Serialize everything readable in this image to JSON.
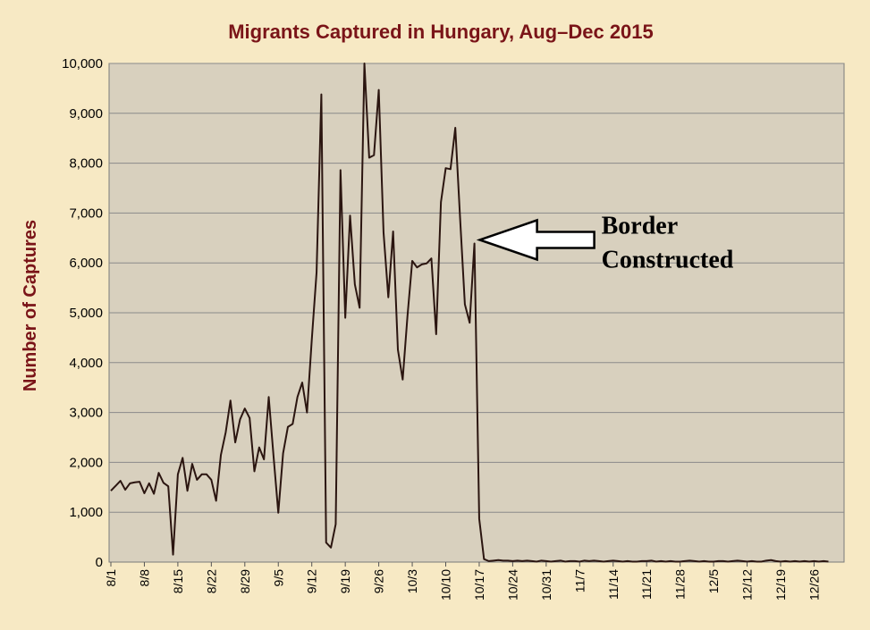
{
  "chart_data": {
    "type": "line",
    "title": "Migrants Captured in Hungary, Aug–Dec 2015",
    "xlabel": "",
    "ylabel": "Number of Captures",
    "ylim": [
      0,
      10000
    ],
    "yticks": [
      0,
      1000,
      2000,
      3000,
      4000,
      5000,
      6000,
      7000,
      8000,
      9000,
      10000
    ],
    "ytick_labels": [
      "0",
      "1,000",
      "2,000",
      "3,000",
      "4,000",
      "5,000",
      "6,000",
      "7,000",
      "8,000",
      "9,000",
      "10,000"
    ],
    "x_tick_labels": [
      "8/1",
      "8/8",
      "8/15",
      "8/22",
      "8/29",
      "9/5",
      "9/12",
      "9/19",
      "9/26",
      "10/3",
      "10/10",
      "10/17",
      "10/24",
      "10/31",
      "11/7",
      "11/14",
      "11/21",
      "11/28",
      "12/5",
      "12/12",
      "12/19",
      "12/26"
    ],
    "x_tick_interval_days": 7,
    "grid": true,
    "legend": "none",
    "colors": {
      "background": "#f7e9c4",
      "plot_area": "#d8d0be",
      "line": "#2b1510",
      "title": "#7a1418"
    },
    "values": [
      1430,
      1530,
      1630,
      1450,
      1580,
      1600,
      1610,
      1380,
      1580,
      1370,
      1790,
      1590,
      1520,
      150,
      1760,
      2090,
      1430,
      1970,
      1650,
      1760,
      1760,
      1650,
      1230,
      2150,
      2600,
      3240,
      2400,
      2860,
      3080,
      2890,
      1820,
      2300,
      2060,
      3310,
      2130,
      990,
      2180,
      2710,
      2770,
      3310,
      3600,
      3000,
      4460,
      5810,
      9380,
      390,
      290,
      760,
      7860,
      4900,
      6950,
      5570,
      5100,
      10000,
      8110,
      8160,
      9470,
      6610,
      5310,
      6630,
      4260,
      3660,
      4930,
      6040,
      5910,
      5970,
      5990,
      6090,
      4570,
      7220,
      7900,
      7880,
      8710,
      6900,
      5170,
      4800,
      6390,
      870,
      60,
      20,
      30,
      40,
      30,
      30,
      20,
      30,
      20,
      30,
      20,
      10,
      30,
      20,
      10,
      20,
      30,
      10,
      20,
      20,
      10,
      30,
      20,
      30,
      20,
      10,
      20,
      30,
      20,
      10,
      20,
      10,
      10,
      20,
      20,
      30,
      10,
      20,
      10,
      20,
      10,
      10,
      20,
      30,
      20,
      10,
      20,
      10,
      10,
      20,
      20,
      10,
      20,
      30,
      20,
      10,
      20,
      10,
      10,
      30,
      40,
      20,
      10,
      20,
      10,
      20,
      10,
      20,
      10,
      20,
      10,
      20,
      10
    ],
    "annotations": [
      {
        "text_lines": [
          "Border",
          "Constructed"
        ],
        "points_to_value": 6390,
        "points_to_day_index": 76
      }
    ]
  }
}
